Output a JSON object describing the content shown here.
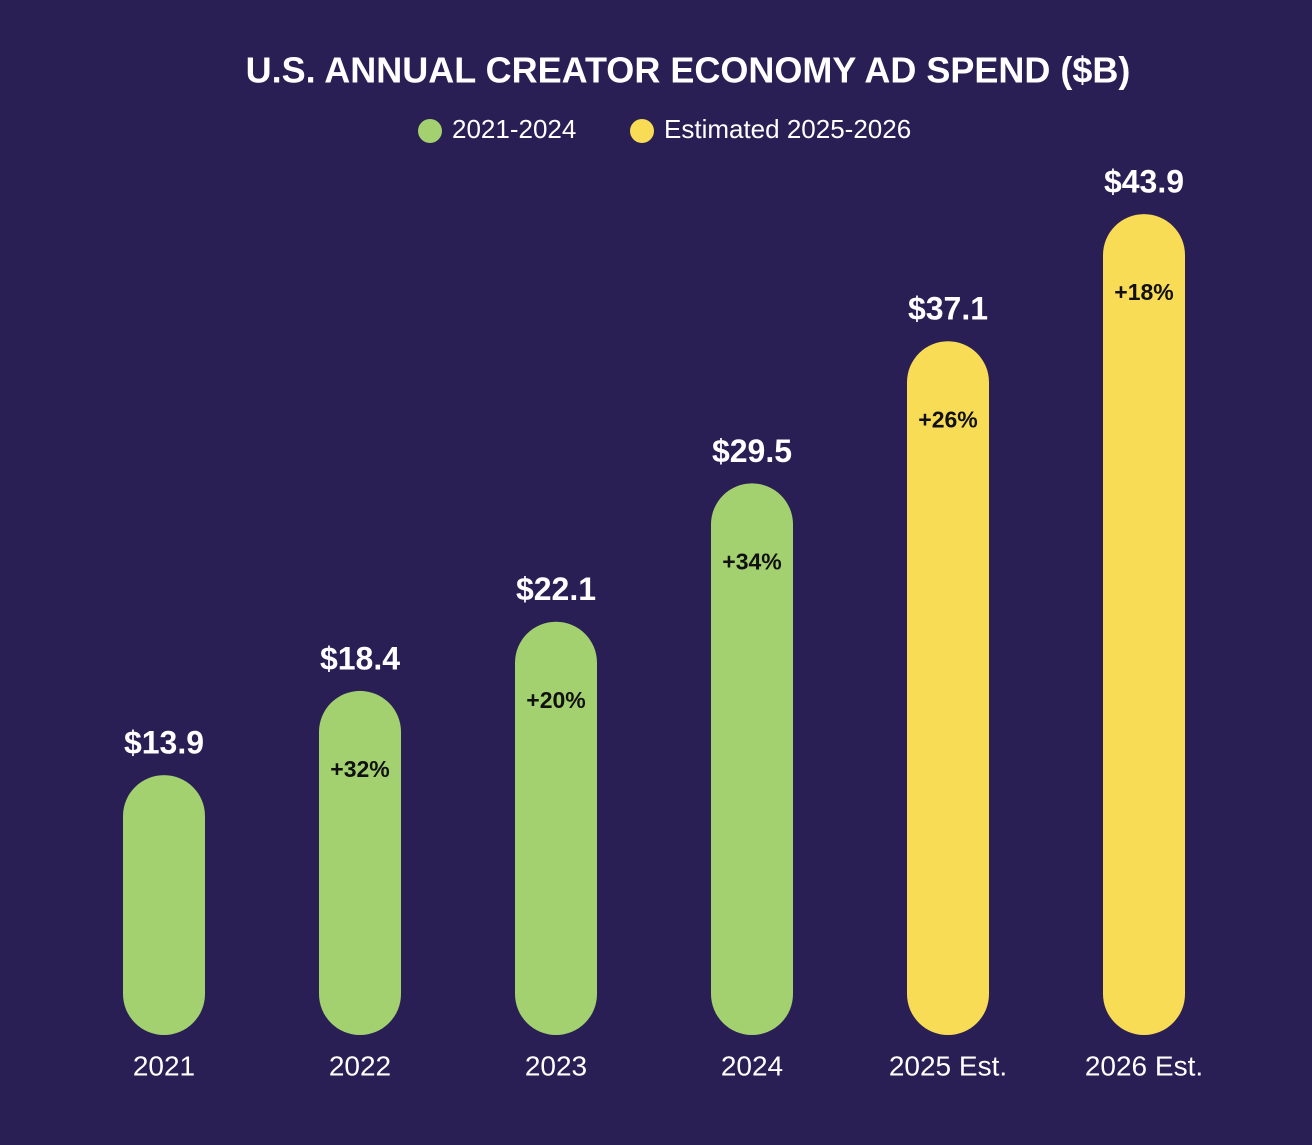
{
  "chart_data": {
    "type": "bar",
    "title": "U.S. ANNUAL CREATOR ECONOMY AD SPEND ($B)",
    "categories": [
      "2021",
      "2022",
      "2023",
      "2024",
      "2025 Est.",
      "2026 Est."
    ],
    "series": [
      {
        "name": "2021-2024",
        "color": "#a3d16f",
        "values": [
          13.9,
          18.4,
          22.1,
          29.5,
          null,
          null
        ],
        "value_labels": [
          "$13.9",
          "$18.4",
          "$22.1",
          "$29.5",
          null,
          null
        ]
      },
      {
        "name": "Estimated 2025-2026",
        "color": "#f9dc55",
        "values": [
          null,
          null,
          null,
          null,
          37.1,
          43.9
        ],
        "value_labels": [
          null,
          null,
          null,
          null,
          "$37.1",
          "$43.9"
        ]
      }
    ],
    "growth_labels": [
      null,
      "+32%",
      "+20%",
      "+34%",
      "+26%",
      "+18%"
    ]
  }
}
